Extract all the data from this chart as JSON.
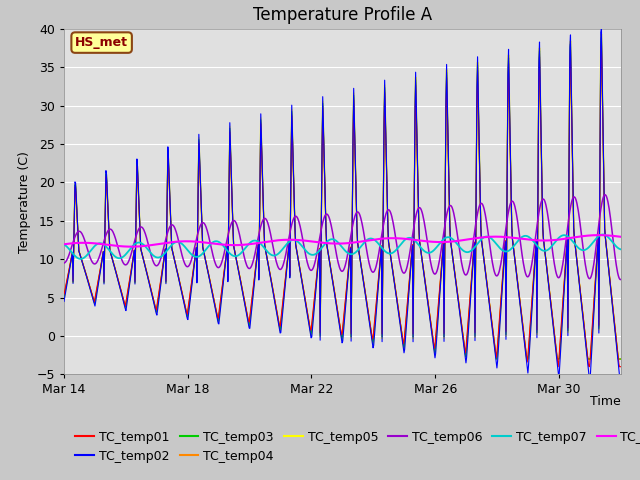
{
  "title": "Temperature Profile A",
  "xlabel": "Time",
  "ylabel": "Temperature (C)",
  "ylim": [
    -5,
    40
  ],
  "yticks": [
    -5,
    0,
    5,
    10,
    15,
    20,
    25,
    30,
    35,
    40
  ],
  "fig_bg": "#c8c8c8",
  "plot_bg": "#e0e0e0",
  "annotation_text": "HS_met",
  "annotation_bg": "#ffff99",
  "annotation_border": "#8B4513",
  "annotation_text_color": "#8B0000",
  "series_colors": {
    "TC_temp01": "#ff0000",
    "TC_temp02": "#0000ff",
    "TC_temp03": "#00cc00",
    "TC_temp04": "#ff8800",
    "TC_temp05": "#ffff00",
    "TC_temp06": "#9900cc",
    "TC_temp07": "#00cccc",
    "TC_temp08": "#ff00ff"
  },
  "xtick_labels": [
    "Mar 14",
    "Mar 18",
    "Mar 22",
    "Mar 26",
    "Mar 30"
  ],
  "grid_color": "#ffffff",
  "title_fontsize": 12,
  "label_fontsize": 9,
  "tick_fontsize": 9,
  "legend_fontsize": 9
}
